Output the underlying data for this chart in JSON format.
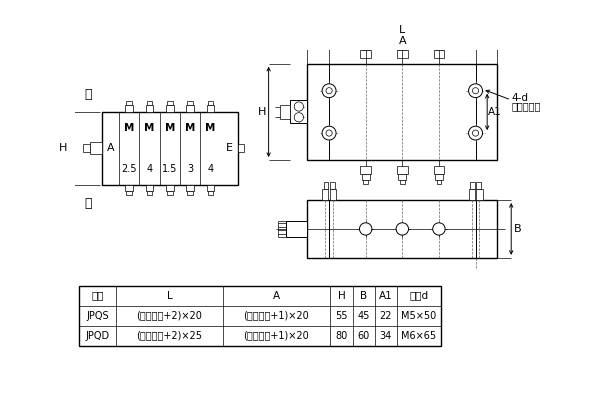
{
  "bg_color": "#ffffff",
  "table_headers": [
    "型号",
    "L",
    "A",
    "H",
    "B",
    "A1",
    "螺钉d"
  ],
  "table_rows": [
    [
      "JPQS",
      "(工作块数+2)×20",
      "(工作块数+1)×20",
      "55",
      "45",
      "22",
      "M5×50"
    ],
    [
      "JPQD",
      "(工作块数+2)×25",
      "(工作块数+1)×20",
      "80",
      "60",
      "34",
      "M6×65"
    ]
  ],
  "label_right": "右",
  "label_left": "左",
  "label_A_side": "A",
  "label_E": "E",
  "label_M": "M",
  "section_values": [
    "2.5",
    "4",
    "1.5",
    "3",
    "4"
  ],
  "dim_L": "L",
  "dim_A": "A",
  "dim_H": "H",
  "dim_B": "B",
  "dim_A1": "A1",
  "annotation_4d": "4-d",
  "annotation_hole": "（安装孔）"
}
